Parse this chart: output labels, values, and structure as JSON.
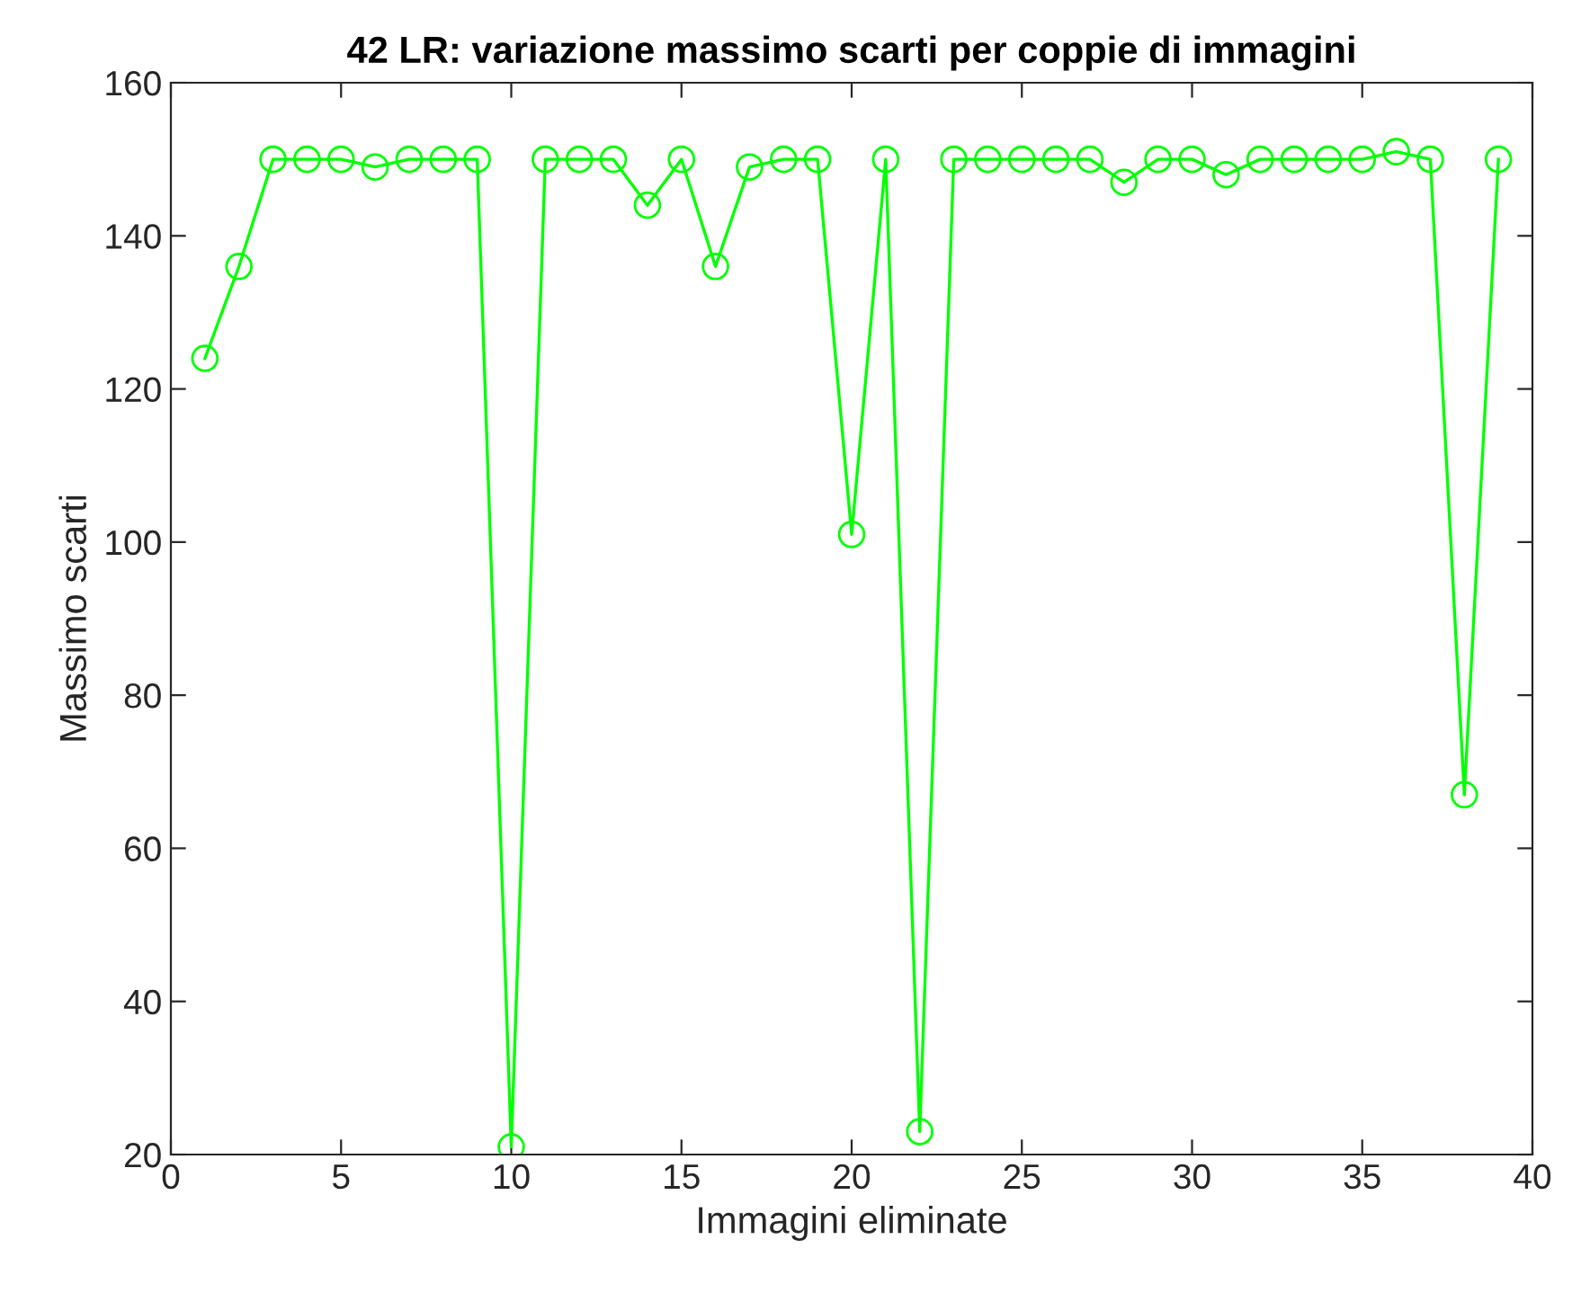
{
  "chart_data": {
    "type": "line",
    "title": "42 LR: variazione massimo scarti per coppie di immagini",
    "xlabel": "Immagini eliminate",
    "ylabel": "Massimo scarti",
    "x": [
      1,
      2,
      3,
      4,
      5,
      6,
      7,
      8,
      9,
      10,
      11,
      12,
      13,
      14,
      15,
      16,
      17,
      18,
      19,
      20,
      21,
      22,
      23,
      24,
      25,
      26,
      27,
      28,
      29,
      30,
      31,
      32,
      33,
      34,
      35,
      36,
      37,
      38,
      39
    ],
    "series": [
      {
        "color": "#00ff00",
        "values": [
          124,
          136,
          150,
          150,
          150,
          149,
          150,
          150,
          150,
          21,
          150,
          150,
          150,
          144,
          150,
          136,
          149,
          150,
          150,
          101,
          150,
          23,
          150,
          150,
          150,
          150,
          150,
          147,
          150,
          150,
          148,
          150,
          150,
          150,
          150,
          151,
          150,
          67,
          150
        ]
      }
    ],
    "xlim": [
      0,
      40
    ],
    "ylim": [
      20,
      160
    ],
    "xticks": [
      0,
      5,
      10,
      15,
      20,
      25,
      30,
      35,
      40
    ],
    "yticks": [
      20,
      40,
      60,
      80,
      100,
      120,
      140,
      160
    ],
    "marker": "circle",
    "line_style": "solid",
    "grid": false
  }
}
